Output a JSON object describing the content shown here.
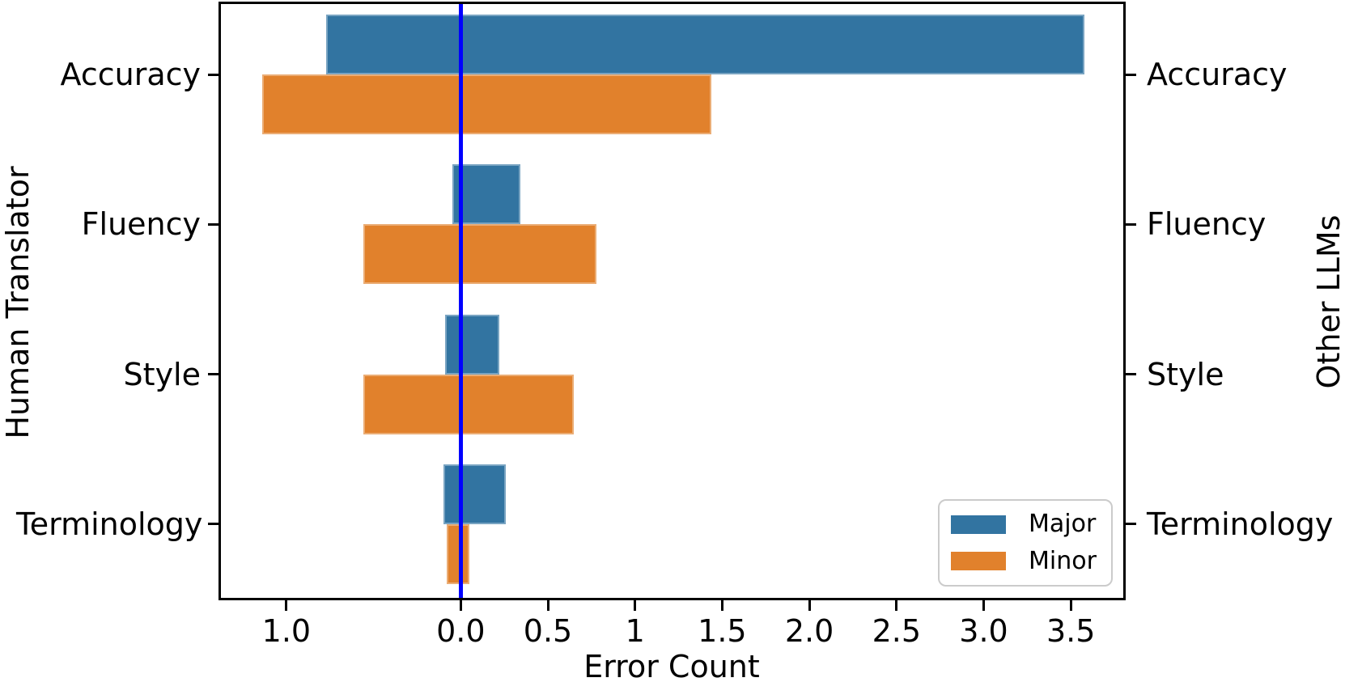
{
  "figure": {
    "background": "#ffffff",
    "text_color": "#000000"
  },
  "chart_data": {
    "type": "bar",
    "variant": "diverging-horizontal",
    "title": "",
    "xlabel": "Error Count",
    "left_axis_label": "Human Translator",
    "right_axis_label": "Other LLMs",
    "categories": [
      "Accuracy",
      "Fluency",
      "Style",
      "Terminology"
    ],
    "series": [
      {
        "name": "Major",
        "color": "#3274A1",
        "human_translator": [
          0.77,
          0.05,
          0.09,
          0.1
        ],
        "other_llms": [
          3.58,
          0.34,
          0.22,
          0.26
        ]
      },
      {
        "name": "Minor",
        "color": "#E1812C",
        "human_translator": [
          1.14,
          0.56,
          0.56,
          0.08
        ],
        "other_llms": [
          1.44,
          0.78,
          0.65,
          0.05
        ]
      }
    ],
    "xlim": [
      -1.38,
      3.81
    ],
    "xticks": [
      {
        "value": -1.0,
        "label": "1.0"
      },
      {
        "value": 0.0,
        "label": "0.0"
      },
      {
        "value": 0.5,
        "label": "0.5"
      },
      {
        "value": 1.0,
        "label": "1"
      },
      {
        "value": 1.5,
        "label": "1.5"
      },
      {
        "value": 2.0,
        "label": "2.0"
      },
      {
        "value": 2.5,
        "label": "2.5"
      },
      {
        "value": 3.0,
        "label": "3.0"
      },
      {
        "value": 3.5,
        "label": "3.5"
      }
    ],
    "zero_line_color": "#0000FF",
    "grid": false,
    "legend": {
      "position": "lower right",
      "entries": [
        "Major",
        "Minor"
      ]
    }
  }
}
